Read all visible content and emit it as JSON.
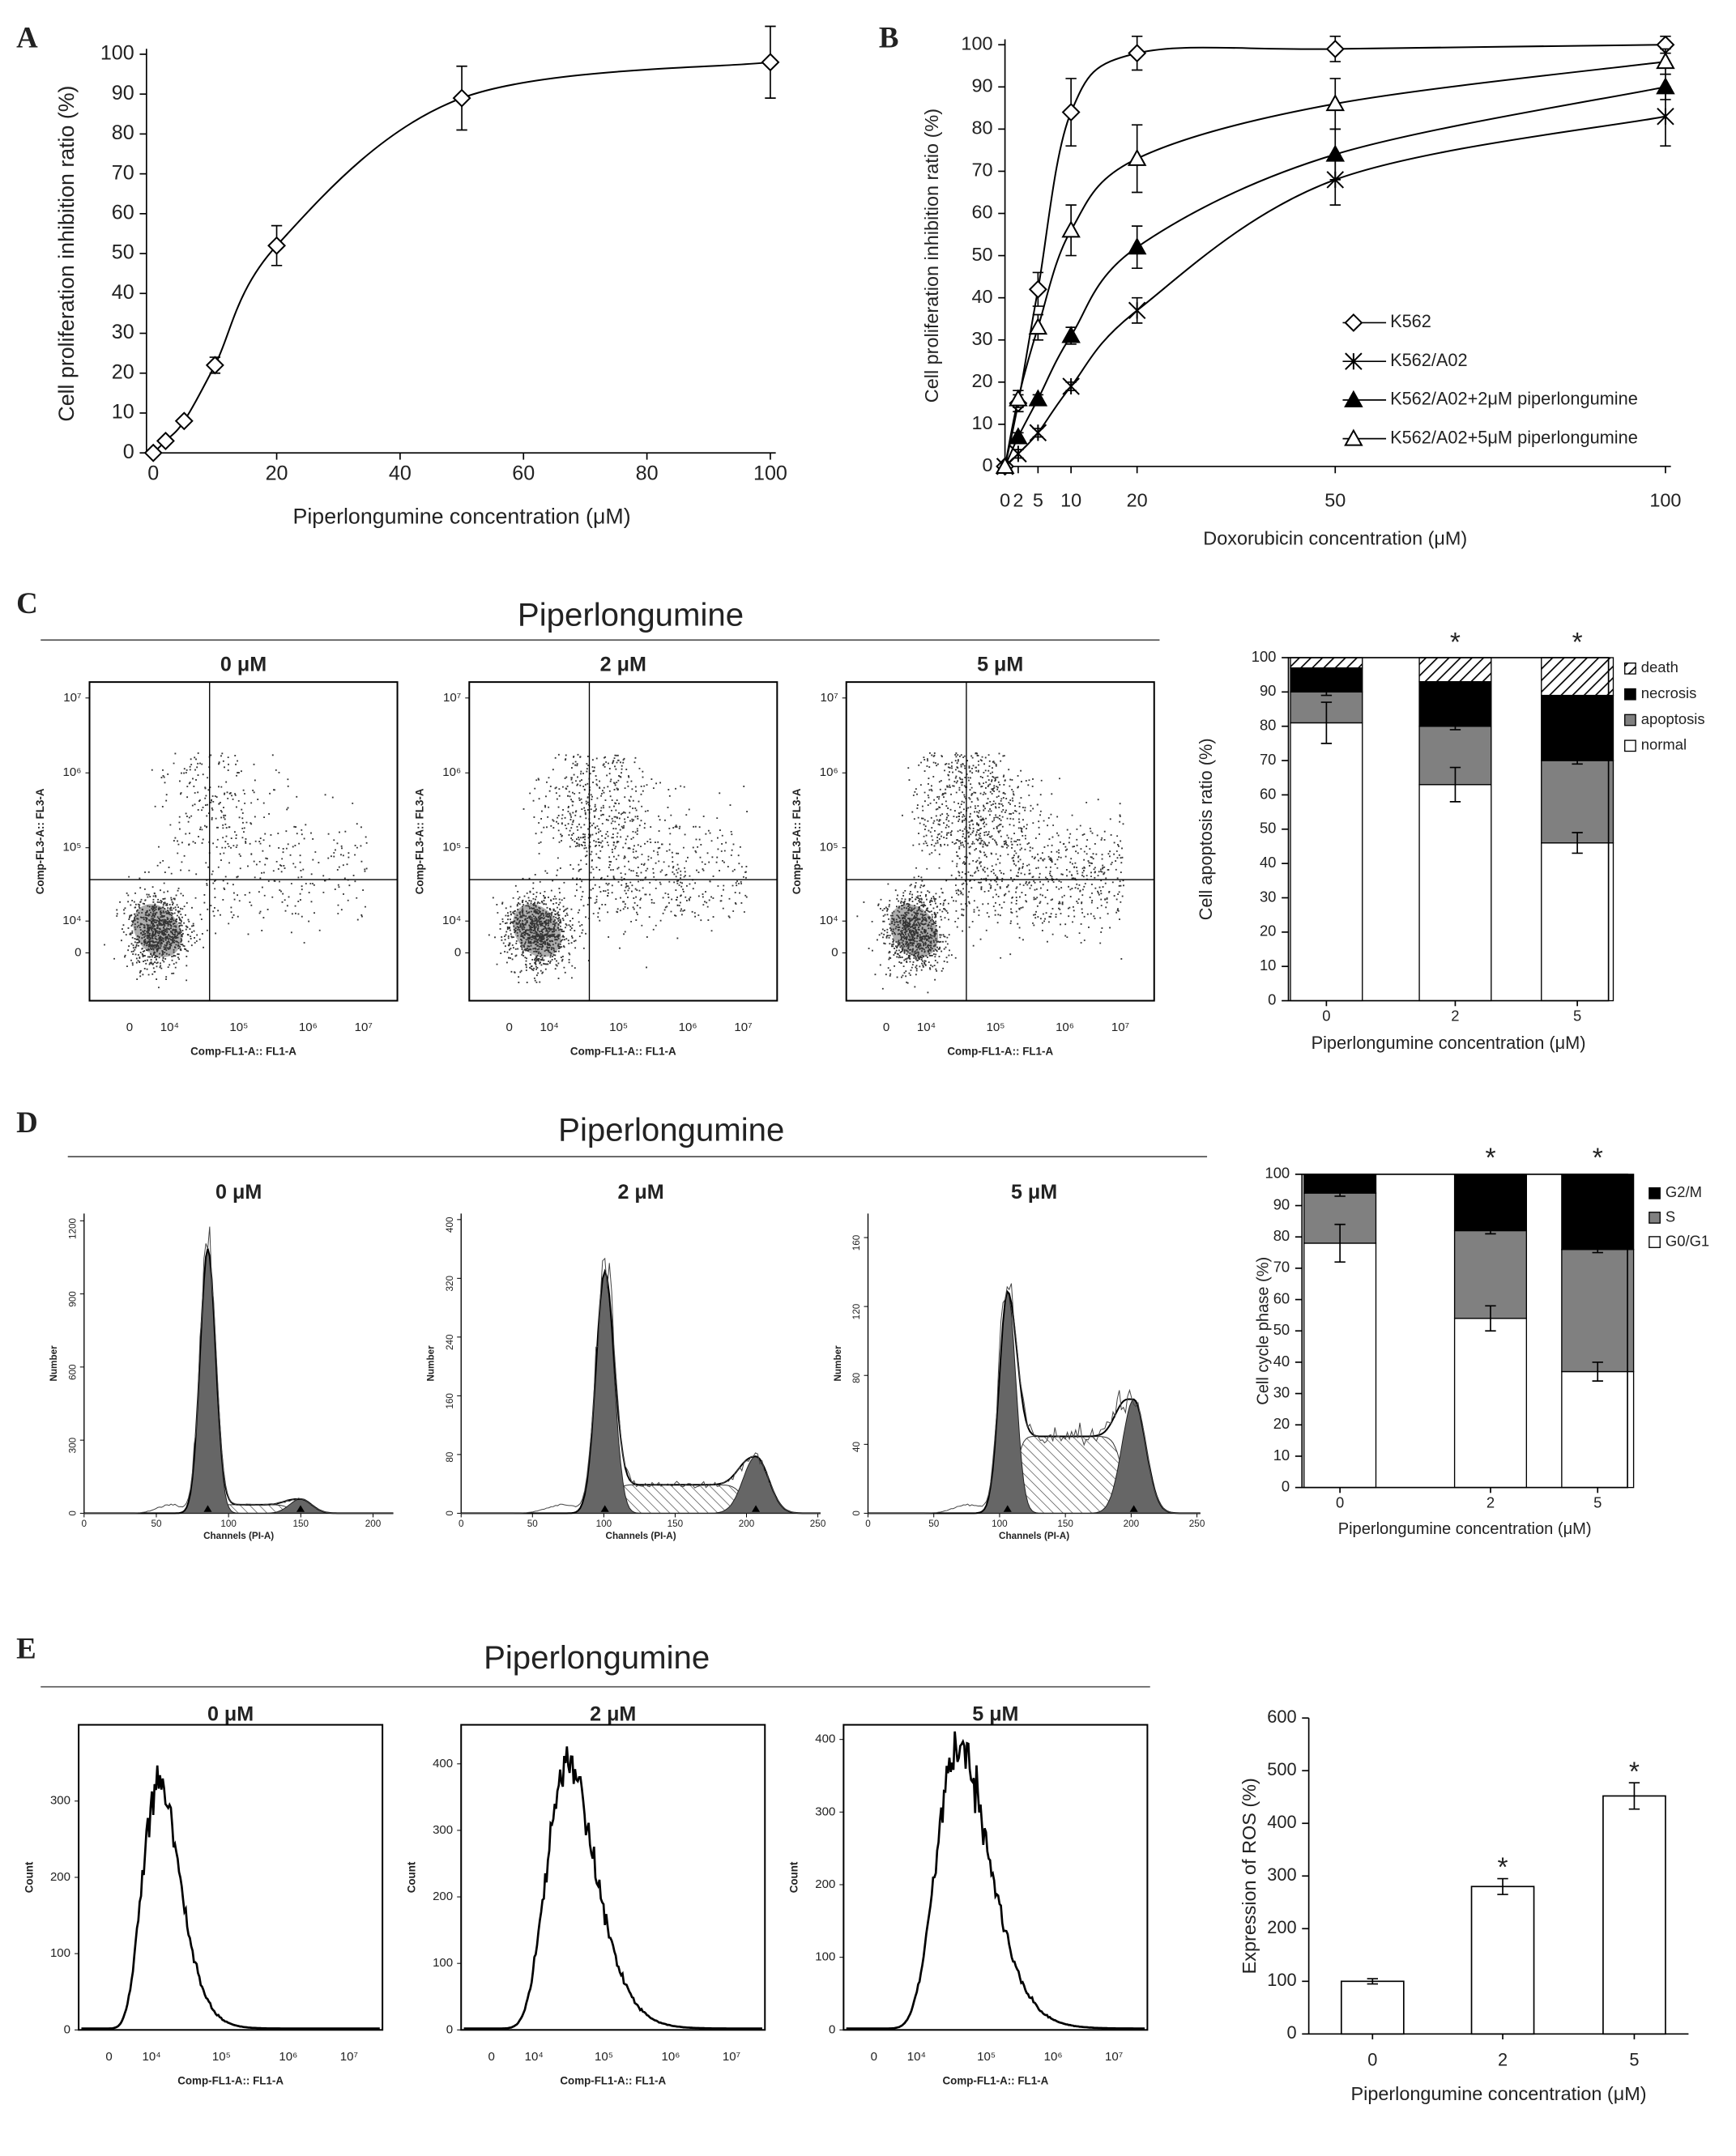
{
  "panel_labels": [
    "A",
    "B",
    "C",
    "D",
    "E"
  ],
  "chart_data": [
    {
      "type": "line",
      "x": [
        0,
        2,
        5,
        10,
        20,
        50,
        100
      ],
      "values": [
        0,
        3,
        8,
        22,
        52,
        89,
        98
      ],
      "errors": [
        0,
        0,
        0,
        2,
        5,
        8,
        9
      ],
      "marker": "diamond",
      "color": "#000000",
      "xlabel": "Piperlongumine concentration (μM)",
      "ylabel": "Cell proliferation inhibition ratio (%)",
      "xlim": [
        0,
        100
      ],
      "ylim": [
        0,
        100
      ],
      "xticks": [
        0,
        20,
        40,
        60,
        80,
        100
      ],
      "yticks": [
        0,
        10,
        20,
        30,
        40,
        50,
        60,
        70,
        80,
        90,
        100
      ]
    },
    {
      "type": "line",
      "x": [
        0,
        2,
        5,
        10,
        20,
        50,
        100
      ],
      "series": [
        {
          "name": "K562",
          "marker": "diamond",
          "color": "#000000",
          "values": [
            0,
            15,
            42,
            84,
            98,
            99,
            100
          ],
          "errors": [
            0,
            2,
            4,
            8,
            4,
            3,
            2
          ]
        },
        {
          "name": "K562/A02",
          "marker": "star",
          "color": "#000000",
          "values": [
            0,
            3,
            8,
            19,
            37,
            68,
            83
          ],
          "errors": [
            0,
            1,
            1,
            1,
            3,
            6,
            7
          ]
        },
        {
          "name": "K562/A02+2μM piperlongumine",
          "marker": "triangle-filled",
          "color": "#000000",
          "values": [
            0,
            7,
            16,
            31,
            52,
            74,
            90
          ],
          "errors": [
            0,
            1,
            1,
            2,
            5,
            6,
            3
          ]
        },
        {
          "name": "K562/A02+5μM piperlongumine",
          "marker": "triangle",
          "color": "#000000",
          "values": [
            0,
            16,
            33,
            56,
            73,
            86,
            96
          ],
          "errors": [
            0,
            2,
            3,
            6,
            8,
            6,
            3
          ]
        }
      ],
      "legend": "lower-right",
      "xlabel": "Doxorubicin concentration (μM)",
      "ylabel": "Cell proliferation inhibition ratio (%)",
      "xlim": [
        0,
        100
      ],
      "ylim": [
        0,
        100
      ],
      "xticks": [
        0,
        2,
        5,
        10,
        20,
        50,
        100
      ],
      "yticks": [
        0,
        10,
        20,
        30,
        40,
        50,
        60,
        70,
        80,
        90,
        100
      ]
    },
    {
      "type": "stacked_bar",
      "categories": [
        "0",
        "2",
        "5"
      ],
      "series": [
        {
          "name": "normal",
          "color": "#ffffff",
          "values": [
            81,
            63,
            46
          ],
          "errors": [
            6,
            5,
            3
          ]
        },
        {
          "name": "apoptosis",
          "color": "#808080",
          "values": [
            9,
            17,
            24
          ],
          "errors": [
            1,
            1,
            1
          ]
        },
        {
          "name": "necrosis",
          "color": "#000000",
          "values": [
            7,
            13,
            19
          ]
        },
        {
          "name": "death",
          "color": "#ffffff",
          "pattern": "hatch",
          "values": [
            3,
            7,
            11
          ]
        }
      ],
      "significance": [
        null,
        "*",
        "*"
      ],
      "legend": "right",
      "xlabel": "Piperlongumine concentration (μM)",
      "ylabel": "Cell apoptosis ratio (%)",
      "ylim": [
        0,
        100
      ],
      "yticks": [
        0,
        10,
        20,
        30,
        40,
        50,
        60,
        70,
        80,
        90,
        100
      ]
    },
    {
      "type": "stacked_bar",
      "categories": [
        "0",
        "2",
        "5"
      ],
      "series": [
        {
          "name": "G0/G1",
          "color": "#ffffff",
          "values": [
            78,
            54,
            37
          ],
          "errors": [
            6,
            4,
            3
          ]
        },
        {
          "name": "S",
          "color": "#808080",
          "values": [
            16,
            28,
            39
          ],
          "errors": [
            1,
            1,
            1
          ]
        },
        {
          "name": "G2/M",
          "color": "#000000",
          "values": [
            6,
            18,
            24
          ]
        }
      ],
      "significance": [
        null,
        "*",
        "*"
      ],
      "legend": "right",
      "xlabel": "Piperlongumine concentration (μM)",
      "ylabel": "Cell cycle phase (%)",
      "ylim": [
        0,
        100
      ],
      "yticks": [
        0,
        10,
        20,
        30,
        40,
        50,
        60,
        70,
        80,
        90,
        100
      ]
    },
    {
      "type": "bar",
      "categories": [
        "0",
        "2",
        "5"
      ],
      "values": [
        100,
        280,
        452
      ],
      "errors": [
        5,
        15,
        25
      ],
      "color": "#ffffff",
      "significance": [
        null,
        "*",
        "*"
      ],
      "xlabel": "Piperlongumine concentration (μM)",
      "ylabel": "Expression of ROS (%)",
      "ylim": [
        0,
        600
      ],
      "yticks": [
        0,
        100,
        200,
        300,
        400,
        500,
        600
      ]
    }
  ],
  "flow_cytometry": [
    {
      "heading": "Piperlongumine",
      "kind": "dot",
      "xlabel": "Comp-FL1-A:: FL1-A",
      "ylabel": "Comp-FL3-A:: FL3-A",
      "plots": [
        {
          "title": "0 μM",
          "xticks": [
            "0",
            "10⁴",
            "10⁵",
            "10⁶",
            "10⁷"
          ],
          "yticks": [
            "0",
            "10⁴",
            "10⁵",
            "10⁶",
            "10⁷"
          ]
        },
        {
          "title": "2 μM",
          "xticks": [
            "0",
            "10⁴",
            "10⁵",
            "10⁶",
            "10⁷"
          ],
          "yticks": [
            "0",
            "10⁴",
            "10⁵",
            "10⁶",
            "10⁷"
          ]
        },
        {
          "title": "5 μM",
          "xticks": [
            "0",
            "10⁴",
            "10⁵",
            "10⁶",
            "10⁷"
          ],
          "yticks": [
            "0",
            "10⁴",
            "10⁵",
            "10⁶",
            "10⁷"
          ]
        }
      ]
    },
    {
      "heading": "Piperlongumine",
      "kind": "cell-cycle",
      "xlabel": "Channels (PI-A)",
      "ylabel": "Number",
      "plots": [
        {
          "title": "0 μM",
          "xticks": [
            0,
            50,
            100,
            150,
            200
          ],
          "yticks": [
            0,
            300,
            600,
            900,
            1200
          ]
        },
        {
          "title": "2 μM",
          "xticks": [
            0,
            50,
            100,
            150,
            200,
            250
          ],
          "yticks": [
            0,
            80,
            160,
            240,
            320,
            400
          ]
        },
        {
          "title": "5 μM",
          "xticks": [
            0,
            50,
            100,
            150,
            200,
            250
          ],
          "yticks": [
            0,
            40,
            80,
            120,
            160
          ]
        }
      ]
    },
    {
      "heading": "Piperlongumine",
      "kind": "histogram",
      "xlabel": "Comp-FL1-A:: FL1-A",
      "ylabel": "Count",
      "plots": [
        {
          "title": "0 μM",
          "xticks": [
            "0",
            "10⁴",
            "10⁵",
            "10⁶",
            "10⁷"
          ],
          "yticks": [
            0,
            100,
            200,
            300
          ]
        },
        {
          "title": "2 μM",
          "xticks": [
            "0",
            "10⁴",
            "10⁵",
            "10⁶",
            "10⁷"
          ],
          "yticks": [
            0,
            100,
            200,
            300,
            400
          ]
        },
        {
          "title": "5 μM",
          "xticks": [
            "0",
            "10⁴",
            "10⁵",
            "10⁶",
            "10⁷"
          ],
          "yticks": [
            0,
            100,
            200,
            300,
            400
          ]
        }
      ]
    }
  ]
}
